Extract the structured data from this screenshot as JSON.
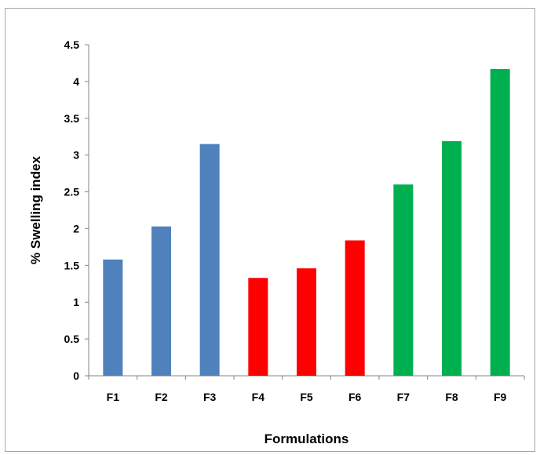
{
  "chart_data": {
    "type": "bar",
    "title": "",
    "xlabel": "Formulations",
    "ylabel": "% Swelling index",
    "categories": [
      "F1",
      "F2",
      "F3",
      "F4",
      "F5",
      "F6",
      "F7",
      "F8",
      "F9"
    ],
    "values": [
      1.58,
      2.03,
      3.15,
      1.33,
      1.46,
      1.84,
      2.6,
      3.19,
      4.17
    ],
    "bar_colors": [
      "#4f81bd",
      "#4f81bd",
      "#4f81bd",
      "#ff0000",
      "#ff0000",
      "#ff0000",
      "#00b050",
      "#00b050",
      "#00b050"
    ],
    "ylim": [
      0,
      4.5
    ],
    "yticks": [
      0,
      0.5,
      1,
      1.5,
      2,
      2.5,
      3,
      3.5,
      4,
      4.5
    ],
    "ytick_labels": [
      "0",
      "0.5",
      "1",
      "1.5",
      "2",
      "2.5",
      "3",
      "3.5",
      "4",
      "4.5"
    ],
    "grid": false,
    "legend": "none"
  }
}
